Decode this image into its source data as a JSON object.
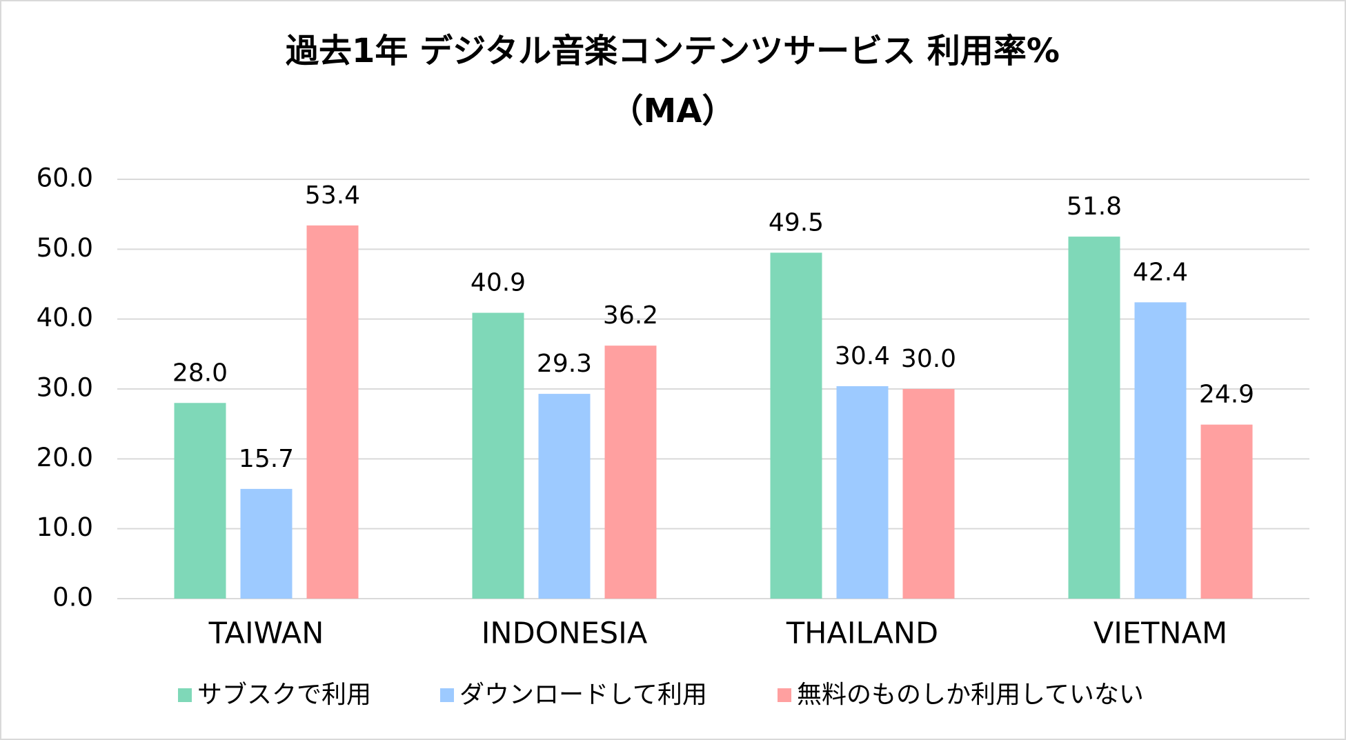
{
  "chart_data": {
    "type": "bar",
    "title": [
      "過去1年 デジタル音楽コンテンツサービス 利用率%",
      "（MA）"
    ],
    "categories": [
      "TAIWAN",
      "INDONESIA",
      "THAILAND",
      "VIETNAM"
    ],
    "series": [
      {
        "name": "サブスクで利用",
        "color": "#7fd8b8",
        "values": [
          28.0,
          40.9,
          49.5,
          51.8
        ],
        "value_labels": [
          "28.0",
          "40.9",
          "49.5",
          "51.8"
        ]
      },
      {
        "name": "ダウンロードして利用",
        "color": "#9dcaff",
        "values": [
          15.7,
          29.3,
          30.4,
          42.4
        ],
        "value_labels": [
          "15.7",
          "29.3",
          "30.4",
          "42.4"
        ]
      },
      {
        "name": "無料のものしか利用していない",
        "color": "#ffa0a0",
        "values": [
          53.4,
          36.2,
          30.0,
          24.9
        ],
        "value_labels": [
          "53.4",
          "36.2",
          "30.0",
          "24.9"
        ]
      }
    ],
    "ylim": [
      0,
      60
    ],
    "yticks": [
      {
        "value": 0,
        "label": "0.0"
      },
      {
        "value": 10,
        "label": "10.0"
      },
      {
        "value": 20,
        "label": "20.0"
      },
      {
        "value": 30,
        "label": "30.0"
      },
      {
        "value": 40,
        "label": "40.0"
      },
      {
        "value": 50,
        "label": "50.0"
      },
      {
        "value": 60,
        "label": "60.0"
      }
    ],
    "grid": true,
    "legend": "bottom"
  }
}
